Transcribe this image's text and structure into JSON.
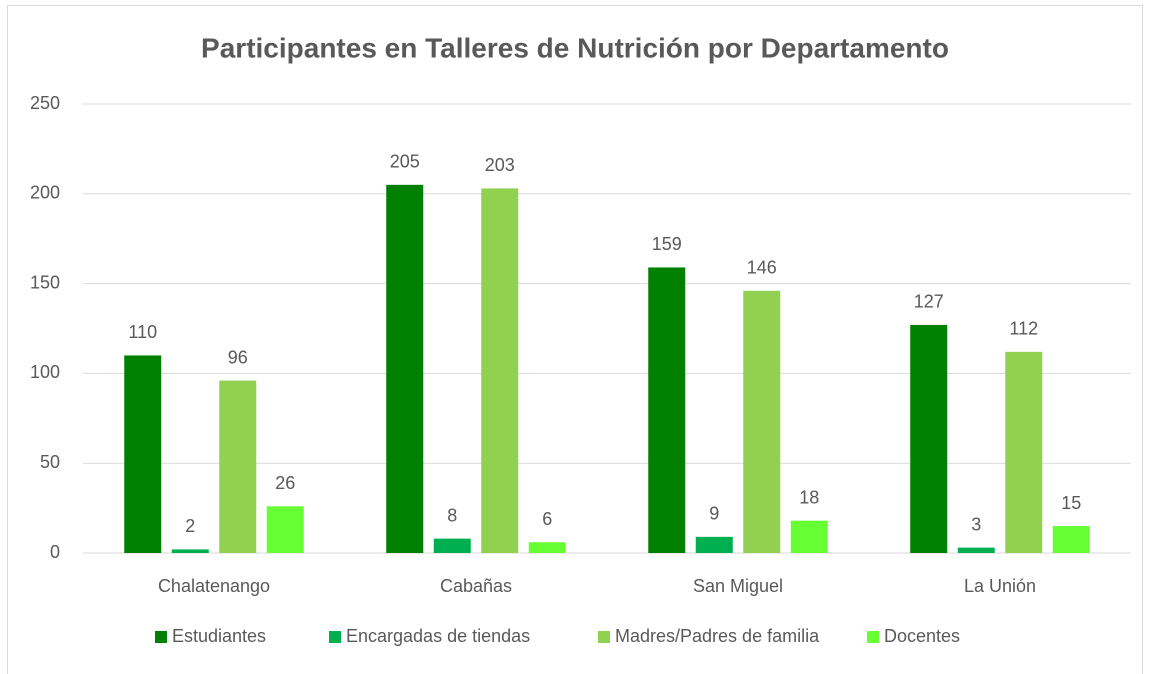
{
  "chart_data": {
    "type": "bar",
    "title": "Participantes en Talleres de Nutrición por Departamento",
    "categories": [
      "Chalatenango",
      "Cabañas",
      "San Miguel",
      "La Unión"
    ],
    "series": [
      {
        "name": "Estudiantes",
        "color": "#008000",
        "values": [
          110,
          205,
          159,
          127
        ]
      },
      {
        "name": "Encargadas de tiendas",
        "color": "#00b050",
        "values": [
          2,
          8,
          9,
          3
        ]
      },
      {
        "name": "Madres/Padres de familia",
        "color": "#92d050",
        "values": [
          96,
          203,
          146,
          112
        ]
      },
      {
        "name": "Docentes",
        "color": "#66ff33",
        "values": [
          26,
          6,
          18,
          15
        ]
      }
    ],
    "ylim": [
      0,
      250
    ],
    "yticks": [
      0,
      50,
      100,
      150,
      200,
      250
    ],
    "grid": true,
    "legend": "bottom"
  }
}
